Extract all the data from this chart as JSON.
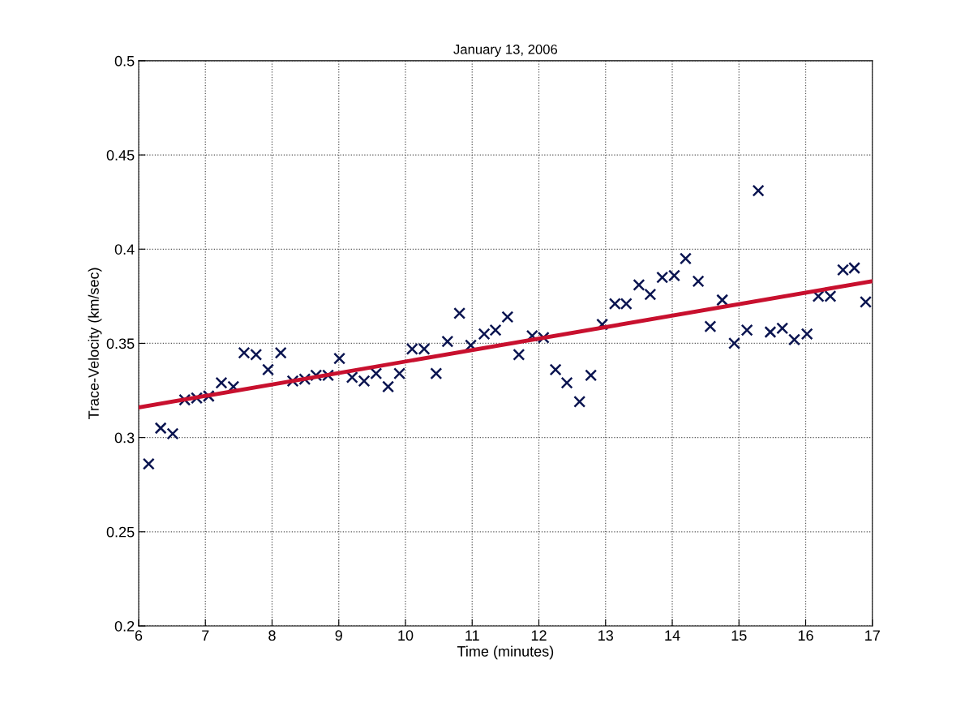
{
  "chart_data": {
    "type": "scatter",
    "title": "January 13, 2006",
    "xlabel": "Time (minutes)",
    "ylabel": "Trace-Velocity (km/sec)",
    "xlim": [
      6,
      17
    ],
    "xticks": [
      6,
      7,
      8,
      9,
      10,
      11,
      12,
      13,
      14,
      15,
      16,
      17
    ],
    "ylim": [
      0.2,
      0.5
    ],
    "yticks": [
      0.2,
      0.25,
      0.3,
      0.35,
      0.4,
      0.45,
      0.5
    ],
    "grid": true,
    "legend": false,
    "series": [
      {
        "marker": "cross",
        "color": "#0a1450",
        "x": [
          6.15,
          6.33,
          6.51,
          6.69,
          6.87,
          7.05,
          7.24,
          7.42,
          7.58,
          7.76,
          7.94,
          8.13,
          8.31,
          8.49,
          8.66,
          8.84,
          9.01,
          9.2,
          9.38,
          9.56,
          9.74,
          9.91,
          10.1,
          10.28,
          10.46,
          10.63,
          10.81,
          10.98,
          11.18,
          11.35,
          11.53,
          11.7,
          11.9,
          12.07,
          12.25,
          12.42,
          12.61,
          12.78,
          12.95,
          13.14,
          13.31,
          13.5,
          13.67,
          13.85,
          14.03,
          14.2,
          14.39,
          14.57,
          14.75,
          14.93,
          15.12,
          15.29,
          15.47,
          15.65,
          15.83,
          16.02,
          16.19,
          16.37,
          16.56,
          16.73,
          16.9
        ],
        "values": [
          0.286,
          0.305,
          0.302,
          0.32,
          0.321,
          0.322,
          0.329,
          0.327,
          0.345,
          0.344,
          0.336,
          0.345,
          0.33,
          0.331,
          0.333,
          0.333,
          0.342,
          0.332,
          0.33,
          0.334,
          0.327,
          0.334,
          0.347,
          0.347,
          0.334,
          0.351,
          0.366,
          0.349,
          0.355,
          0.357,
          0.364,
          0.344,
          0.354,
          0.353,
          0.336,
          0.329,
          0.319,
          0.333,
          0.36,
          0.371,
          0.371,
          0.381,
          0.376,
          0.385,
          0.386,
          0.395,
          0.383,
          0.359,
          0.373,
          0.35,
          0.357,
          0.431,
          0.356,
          0.358,
          0.352,
          0.355,
          0.375,
          0.375,
          0.389,
          0.39,
          0.372
        ]
      },
      {
        "type": "line",
        "marker": "none",
        "line_style": "solid",
        "color": "#c8102e",
        "x": [
          6,
          17
        ],
        "values": [
          0.316,
          0.383
        ]
      }
    ]
  }
}
